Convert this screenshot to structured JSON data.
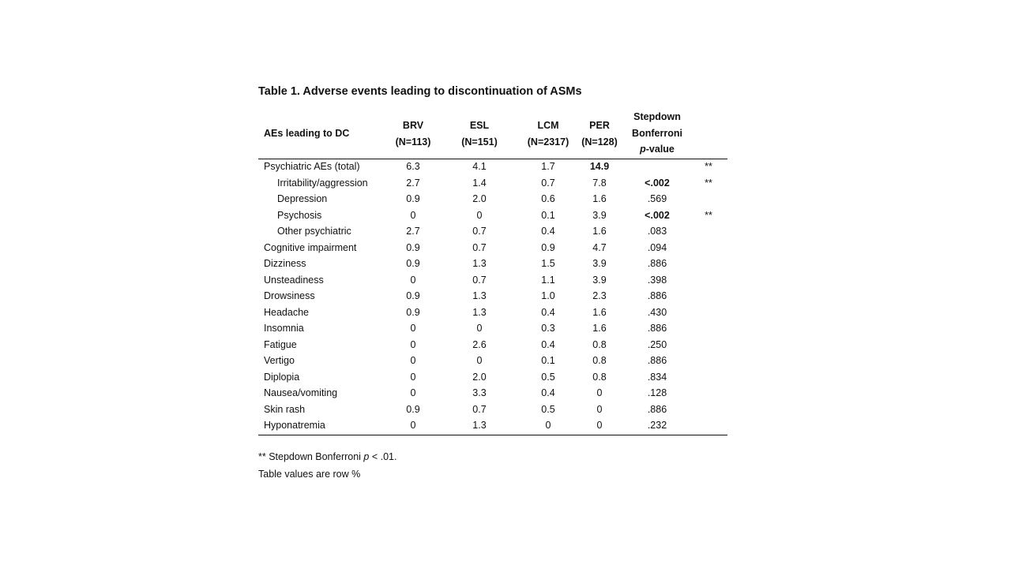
{
  "title": "Table 1. Adverse events leading to discontinuation of ASMs",
  "columns": {
    "label": "AEs leading to DC",
    "groups": [
      {
        "name": "BRV",
        "n": "(N=113)"
      },
      {
        "name": "ESL",
        "n": "(N=151)"
      },
      {
        "name": "LCM",
        "n": "(N=2317)"
      },
      {
        "name": "PER",
        "n": "(N=128)"
      }
    ],
    "p_line1": "Stepdown",
    "p_line2": "Bonferroni",
    "p_line3_italic": "p",
    "p_line3_rest": "-value"
  },
  "rows": [
    {
      "label": "Psychiatric AEs (total)",
      "indent": false,
      "values": [
        "6.3",
        "4.1",
        "1.7",
        "14.9"
      ],
      "bold_values": [
        false,
        false,
        false,
        true
      ],
      "p": "",
      "p_bold": false,
      "flag": "**"
    },
    {
      "label": "Irritability/aggression",
      "indent": true,
      "values": [
        "2.7",
        "1.4",
        "0.7",
        "7.8"
      ],
      "bold_values": [
        false,
        false,
        false,
        false
      ],
      "p": "<.002",
      "p_bold": true,
      "flag": "**"
    },
    {
      "label": "Depression",
      "indent": true,
      "values": [
        "0.9",
        "2.0",
        "0.6",
        "1.6"
      ],
      "bold_values": [
        false,
        false,
        false,
        false
      ],
      "p": ".569",
      "p_bold": false,
      "flag": ""
    },
    {
      "label": "Psychosis",
      "indent": true,
      "values": [
        "0",
        "0",
        "0.1",
        "3.9"
      ],
      "bold_values": [
        false,
        false,
        false,
        false
      ],
      "p": "<.002",
      "p_bold": true,
      "flag": "**"
    },
    {
      "label": "Other psychiatric",
      "indent": true,
      "values": [
        "2.7",
        "0.7",
        "0.4",
        "1.6"
      ],
      "bold_values": [
        false,
        false,
        false,
        false
      ],
      "p": ".083",
      "p_bold": false,
      "flag": ""
    },
    {
      "label": "Cognitive impairment",
      "indent": false,
      "values": [
        "0.9",
        "0.7",
        "0.9",
        "4.7"
      ],
      "bold_values": [
        false,
        false,
        false,
        false
      ],
      "p": ".094",
      "p_bold": false,
      "flag": ""
    },
    {
      "label": "Dizziness",
      "indent": false,
      "values": [
        "0.9",
        "1.3",
        "1.5",
        "3.9"
      ],
      "bold_values": [
        false,
        false,
        false,
        false
      ],
      "p": ".886",
      "p_bold": false,
      "flag": ""
    },
    {
      "label": "Unsteadiness",
      "indent": false,
      "values": [
        "0",
        "0.7",
        "1.1",
        "3.9"
      ],
      "bold_values": [
        false,
        false,
        false,
        false
      ],
      "p": ".398",
      "p_bold": false,
      "flag": ""
    },
    {
      "label": "Drowsiness",
      "indent": false,
      "values": [
        "0.9",
        "1.3",
        "1.0",
        "2.3"
      ],
      "bold_values": [
        false,
        false,
        false,
        false
      ],
      "p": ".886",
      "p_bold": false,
      "flag": ""
    },
    {
      "label": "Headache",
      "indent": false,
      "values": [
        "0.9",
        "1.3",
        "0.4",
        "1.6"
      ],
      "bold_values": [
        false,
        false,
        false,
        false
      ],
      "p": ".430",
      "p_bold": false,
      "flag": ""
    },
    {
      "label": "Insomnia",
      "indent": false,
      "values": [
        "0",
        "0",
        "0.3",
        "1.6"
      ],
      "bold_values": [
        false,
        false,
        false,
        false
      ],
      "p": ".886",
      "p_bold": false,
      "flag": ""
    },
    {
      "label": "Fatigue",
      "indent": false,
      "values": [
        "0",
        "2.6",
        "0.4",
        "0.8"
      ],
      "bold_values": [
        false,
        false,
        false,
        false
      ],
      "p": ".250",
      "p_bold": false,
      "flag": ""
    },
    {
      "label": "Vertigo",
      "indent": false,
      "values": [
        "0",
        "0",
        "0.1",
        "0.8"
      ],
      "bold_values": [
        false,
        false,
        false,
        false
      ],
      "p": ".886",
      "p_bold": false,
      "flag": ""
    },
    {
      "label": "Diplopia",
      "indent": false,
      "values": [
        "0",
        "2.0",
        "0.5",
        "0.8"
      ],
      "bold_values": [
        false,
        false,
        false,
        false
      ],
      "p": ".834",
      "p_bold": false,
      "flag": ""
    },
    {
      "label": "Nausea/vomiting",
      "indent": false,
      "values": [
        "0",
        "3.3",
        "0.4",
        "0"
      ],
      "bold_values": [
        false,
        false,
        false,
        false
      ],
      "p": ".128",
      "p_bold": false,
      "flag": ""
    },
    {
      "label": "Skin rash",
      "indent": false,
      "values": [
        "0.9",
        "0.7",
        "0.5",
        "0"
      ],
      "bold_values": [
        false,
        false,
        false,
        false
      ],
      "p": ".886",
      "p_bold": false,
      "flag": ""
    },
    {
      "label": "Hyponatremia",
      "indent": false,
      "values": [
        "0",
        "1.3",
        "0",
        "0"
      ],
      "bold_values": [
        false,
        false,
        false,
        false
      ],
      "p": ".232",
      "p_bold": false,
      "flag": ""
    }
  ],
  "footnotes": {
    "sig_prefix": "** Stepdown Bonferroni ",
    "sig_italic": "p",
    "sig_suffix": " < .01.",
    "note": "Table values are row %"
  }
}
